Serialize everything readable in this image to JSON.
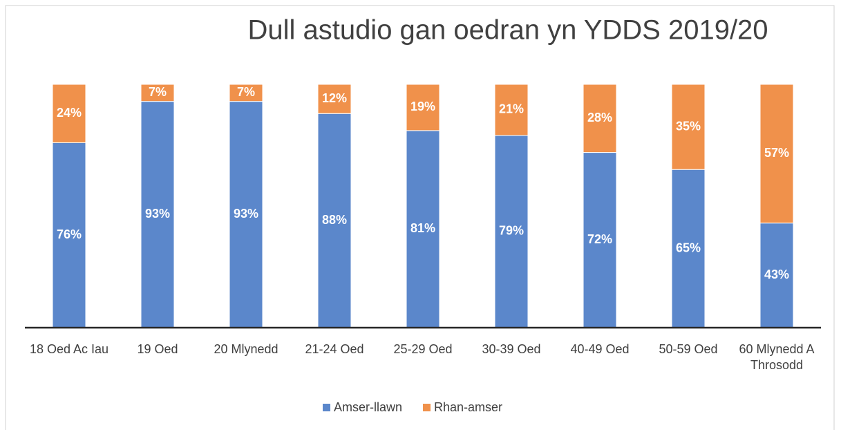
{
  "chart_data": {
    "type": "stacked-bar",
    "title": "Dull astudio gan oedran yn YDDS 2019/20",
    "categories": [
      "18 Oed Ac Iau",
      "19 Oed",
      "20 Mlynedd",
      "21-24 Oed",
      "25-29 Oed",
      "30-39 Oed",
      "40-49 Oed",
      "50-59 Oed",
      "60 Mlynedd A Throsodd"
    ],
    "series": [
      {
        "name": "Amser-llawn",
        "color": "#5b87cb",
        "values": [
          76,
          93,
          93,
          88,
          81,
          79,
          72,
          65,
          43
        ],
        "value_labels": [
          "76%",
          "93%",
          "93%",
          "88%",
          "81%",
          "79%",
          "72%",
          "65%",
          "43%"
        ]
      },
      {
        "name": "Rhan-amser",
        "color": "#f0914b",
        "values": [
          24,
          7,
          7,
          12,
          19,
          21,
          28,
          35,
          57
        ],
        "value_labels": [
          "24%",
          "7%",
          "7%",
          "12%",
          "19%",
          "21%",
          "28%",
          "35%",
          "57%"
        ]
      }
    ],
    "ylim": [
      0,
      100
    ],
    "legend": "bottom"
  }
}
